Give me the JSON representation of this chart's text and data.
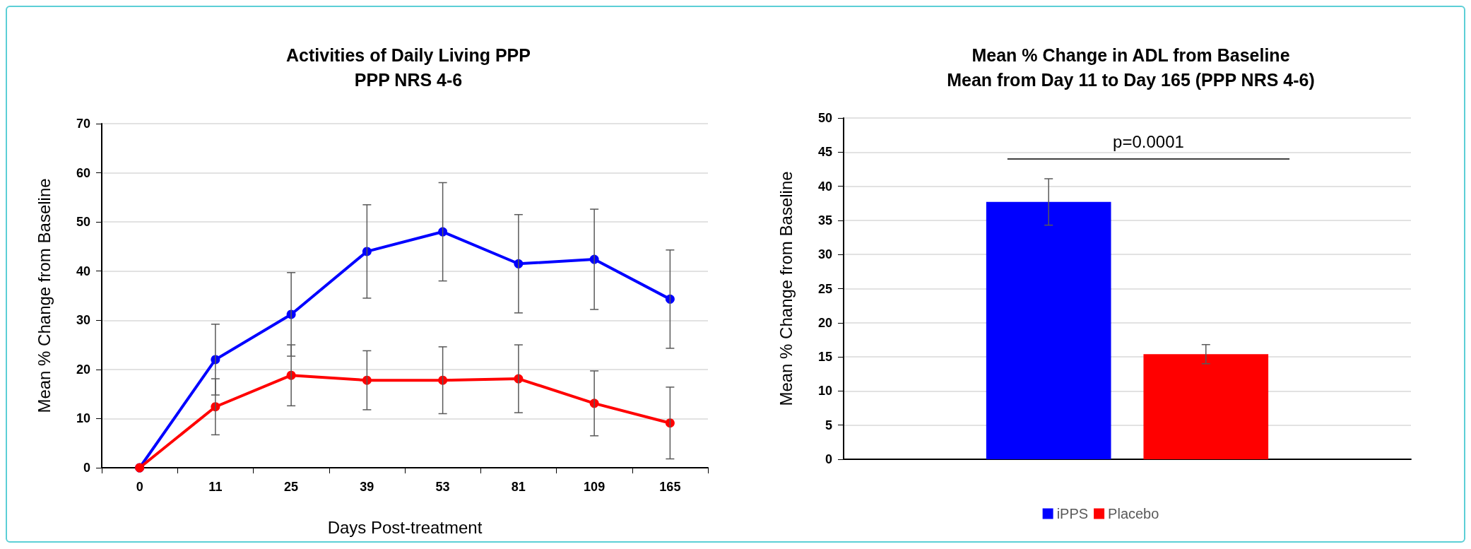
{
  "chart_data": [
    {
      "type": "line",
      "title": "Activities of Daily Living PPP",
      "subtitle": "PPP NRS 4-6",
      "xlabel": "Days Post-treatment",
      "ylabel": "Mean % Change from Baseline",
      "categories": [
        "0",
        "11",
        "25",
        "39",
        "53",
        "81",
        "109",
        "165"
      ],
      "series": [
        {
          "color": "#0000ff",
          "values": [
            0,
            22.0,
            31.2,
            44.0,
            48.0,
            41.5,
            42.4,
            34.3
          ],
          "errors": [
            null,
            7.2,
            8.5,
            9.5,
            10,
            10,
            10.2,
            10
          ]
        },
        {
          "color": "#ff0000",
          "values": [
            0,
            12.4,
            18.8,
            17.8,
            17.8,
            18.1,
            13.1,
            9.1
          ],
          "errors": [
            null,
            5.7,
            6.2,
            6,
            6.8,
            6.9,
            6.6,
            7.3
          ]
        }
      ],
      "ylim": [
        0,
        70
      ],
      "yticks": [
        0,
        10,
        20,
        30,
        40,
        50,
        60,
        70
      ],
      "grid": "y",
      "marker": "circle"
    },
    {
      "type": "bar",
      "title": "Mean % Change in ADL from Baseline",
      "subtitle": "Mean from Day 11 to Day 165 (PPP NRS 4-6)",
      "ylabel": "Mean % Change from Baseline",
      "categories": [
        null
      ],
      "series": [
        {
          "name": "iPPS",
          "color": "#0000ff",
          "values": [
            37.7
          ],
          "errors": [
            3.4
          ]
        },
        {
          "name": "Placebo",
          "color": "#ff0000",
          "values": [
            15.4
          ],
          "errors": [
            1.4
          ]
        }
      ],
      "ylim": [
        0,
        50
      ],
      "yticks": [
        0,
        5,
        10,
        15,
        20,
        25,
        30,
        35,
        40,
        45,
        50
      ],
      "grid": "y",
      "legend": "bottom",
      "annotations": [
        "p=0.0001"
      ]
    }
  ]
}
